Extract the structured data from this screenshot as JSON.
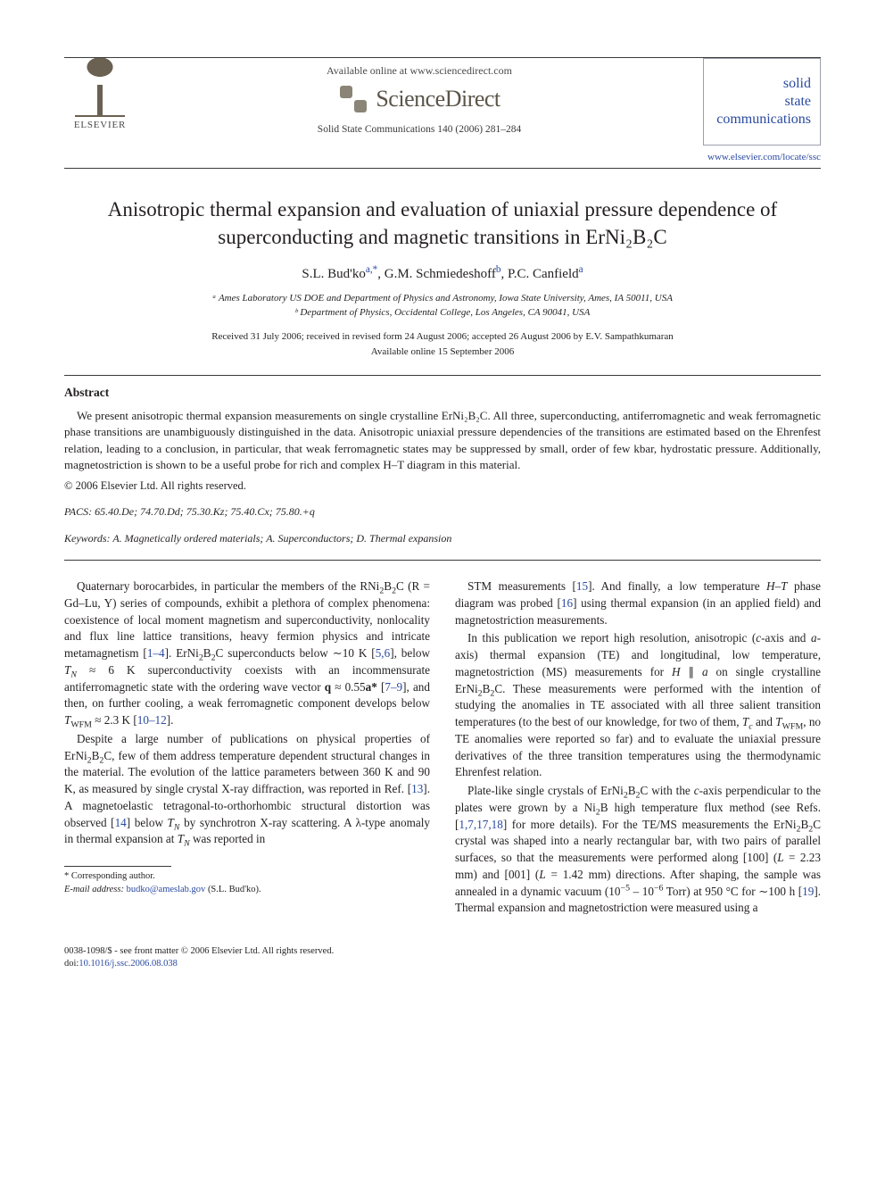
{
  "header": {
    "available_online": "Available online at www.sciencedirect.com",
    "sd_brand": "ScienceDirect",
    "elsevier_label": "ELSEVIER",
    "journal_ref": "Solid State Communications 140 (2006) 281–284",
    "ssc_lines": [
      "solid",
      "state",
      "communications"
    ],
    "locate_url": "www.elsevier.com/locate/ssc"
  },
  "title": "Anisotropic thermal expansion and evaluation of uniaxial pressure dependence of superconducting and magnetic transitions in ErNi₂B₂C",
  "authors_html": "S.L. Bud'ko<sup>a,*</sup>, G.M. Schmiedeshoff<sup>b</sup>, P.C. Canfield<sup>a</sup>",
  "affiliations": [
    "ᵃ Ames Laboratory US DOE and Department of Physics and Astronomy, Iowa State University, Ames, IA 50011, USA",
    "ᵇ Department of Physics, Occidental College, Los Angeles, CA 90041, USA"
  ],
  "dates": [
    "Received 31 July 2006; received in revised form 24 August 2006; accepted 26 August 2006 by E.V. Sampathkumaran",
    "Available online 15 September 2006"
  ],
  "abstract": {
    "heading": "Abstract",
    "text": "We present anisotropic thermal expansion measurements on single crystalline ErNi₂B₂C. All three, superconducting, antiferromagnetic and weak ferromagnetic phase transitions are unambiguously distinguished in the data. Anisotropic uniaxial pressure dependencies of the transitions are estimated based on the Ehrenfest relation, leading to a conclusion, in particular, that weak ferromagnetic states may be suppressed by small, order of few kbar, hydrostatic pressure. Additionally, magnetostriction is shown to be a useful probe for rich and complex H–T diagram in this material.",
    "copyright": "© 2006 Elsevier Ltd. All rights reserved."
  },
  "pacs": "PACS: 65.40.De; 74.70.Dd; 75.30.Kz; 75.40.Cx; 75.80.+q",
  "keywords": "Keywords: A. Magnetically ordered materials; A. Superconductors; D. Thermal expansion",
  "body": {
    "p1": "Quaternary borocarbides, in particular the members of the RNi₂B₂C (R = Gd–Lu, Y) series of compounds, exhibit a plethora of complex phenomena: coexistence of local moment magnetism and superconductivity, nonlocality and flux line lattice transitions, heavy fermion physics and intricate metamagnetism [1–4]. ErNi₂B₂C superconducts below ∼10 K [5,6], below T_N ≈ 6 K superconductivity coexists with an incommensurate antiferromagnetic state with the ordering wave vector q ≈ 0.55a* [7–9], and then, on further cooling, a weak ferromagnetic component develops below T_WFM ≈ 2.3 K [10–12].",
    "p2": "Despite a large number of publications on physical properties of ErNi₂B₂C, few of them address temperature dependent structural changes in the material. The evolution of the lattice parameters between 360 K and 90 K, as measured by single crystal X-ray diffraction, was reported in Ref. [13]. A magnetoelastic tetragonal-to-orthorhombic structural distortion was observed [14] below T_N by synchrotron X-ray scattering. A λ-type anomaly in thermal expansion at T_N was reported in",
    "p3": "STM measurements [15]. And finally, a low temperature H–T phase diagram was probed [16] using thermal expansion (in an applied field) and magnetostriction measurements.",
    "p4": "In this publication we report high resolution, anisotropic (c-axis and a-axis) thermal expansion (TE) and longitudinal, low temperature, magnetostriction (MS) measurements for H ∥ a on single crystalline ErNi₂B₂C. These measurements were performed with the intention of studying the anomalies in TE associated with all three salient transition temperatures (to the best of our knowledge, for two of them, T_c and T_WFM, no TE anomalies were reported so far) and to evaluate the uniaxial pressure derivatives of the three transition temperatures using the thermodynamic Ehrenfest relation.",
    "p5": "Plate-like single crystals of ErNi₂B₂C with the c-axis perpendicular to the plates were grown by a Ni₂B high temperature flux method (see Refs. [1,7,17,18] for more details). For the TE/MS measurements the ErNi₂B₂C crystal was shaped into a nearly rectangular bar, with two pairs of parallel surfaces, so that the measurements were performed along [100] (L = 2.23 mm) and [001] (L = 1.42 mm) directions. After shaping, the sample was annealed in a dynamic vacuum (10⁻⁵ – 10⁻⁶ Torr) at 950 °C for ∼100 h [19]. Thermal expansion and magnetostriction were measured using a"
  },
  "footnote": {
    "corr": "* Corresponding author.",
    "email_label": "E-mail address:",
    "email": "budko@ameslab.gov",
    "email_who": "(S.L. Bud'ko)."
  },
  "footer": {
    "line1": "0038-1098/$ - see front matter © 2006 Elsevier Ltd. All rights reserved.",
    "doi_label": "doi:",
    "doi": "10.1016/j.ssc.2006.08.038"
  },
  "colors": {
    "link": "#2a49a0",
    "text": "#231f20",
    "rule": "#3a3a3a",
    "box_border": "#9aa0ae"
  }
}
